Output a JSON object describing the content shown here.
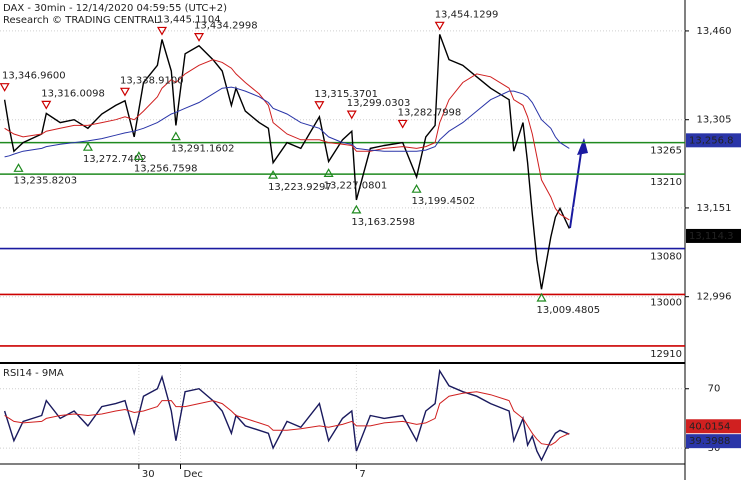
{
  "chart_data": [
    {
      "type": "line",
      "title": "DAX - 30min - 12/14/2020 04:59:55 (UTC+2)",
      "subtitle": "Research © TRADING CENTRAL",
      "x": [
        0,
        1,
        2,
        4,
        8,
        9,
        12,
        15,
        18,
        21,
        24,
        26,
        28,
        30,
        33,
        34,
        36,
        37,
        39,
        42,
        45,
        47,
        49,
        50,
        52,
        55,
        57,
        58,
        61,
        64,
        68,
        70,
        73,
        75,
        76,
        79,
        82,
        86,
        89,
        91,
        93,
        94,
        96,
        99,
        102,
        105,
        109,
        110,
        112,
        113,
        114,
        115,
        116,
        118,
        119,
        120,
        122
      ],
      "xlim": [
        -1,
        147
      ],
      "ylim": [
        12882,
        13514
      ],
      "yticks": [
        {
          "value": 13460,
          "label": "13,460"
        },
        {
          "value": 13305,
          "label": "13,305"
        },
        {
          "value": 13151,
          "label": "13,151"
        },
        {
          "value": 12996,
          "label": "12,996"
        }
      ],
      "grid": true,
      "series": [
        {
          "color": "#000000",
          "values": [
            13340,
            13290,
            13250,
            13265,
            13280,
            13316,
            13300,
            13305,
            13290,
            13315,
            13330,
            13338,
            13275,
            13370,
            13400,
            13445,
            13390,
            13295,
            13420,
            13434,
            13410,
            13390,
            13330,
            13360,
            13320,
            13300,
            13290,
            13230,
            13265,
            13255,
            13310,
            13232,
            13270,
            13285,
            13165,
            13255,
            13260,
            13265,
            13205,
            13275,
            13295,
            13454,
            13410,
            13400,
            13380,
            13360,
            13340,
            13250,
            13300,
            13230,
            13140,
            13060,
            13009,
            13100,
            13135,
            13150,
            13115
          ]
        },
        {
          "color": "#d02020",
          "values": [
            13290,
            13285,
            13280,
            13275,
            13280,
            13285,
            13290,
            13295,
            13295,
            13300,
            13305,
            13310,
            13305,
            13320,
            13345,
            13360,
            13375,
            13370,
            13385,
            13400,
            13410,
            13405,
            13395,
            13385,
            13370,
            13350,
            13330,
            13300,
            13280,
            13270,
            13270,
            13265,
            13262,
            13260,
            13250,
            13250,
            13255,
            13258,
            13255,
            13258,
            13265,
            13300,
            13340,
            13370,
            13385,
            13380,
            13360,
            13340,
            13330,
            13310,
            13280,
            13240,
            13200,
            13170,
            13150,
            13140,
            13130
          ]
        },
        {
          "color": "#2a35a8",
          "values": [
            13240,
            13242,
            13245,
            13250,
            13255,
            13258,
            13262,
            13265,
            13268,
            13272,
            13278,
            13282,
            13285,
            13290,
            13300,
            13305,
            13315,
            13318,
            13325,
            13335,
            13350,
            13360,
            13362,
            13360,
            13355,
            13345,
            13335,
            13325,
            13315,
            13300,
            13290,
            13275,
            13265,
            13262,
            13255,
            13252,
            13250,
            13250,
            13250,
            13252,
            13258,
            13270,
            13285,
            13300,
            13320,
            13340,
            13355,
            13355,
            13350,
            13345,
            13335,
            13320,
            13305,
            13290,
            13275,
            13265,
            13255
          ]
        }
      ],
      "levels": [
        {
          "value": 13265,
          "color": "#1f8a1f"
        },
        {
          "value": 13210,
          "color": "#1f8a1f"
        },
        {
          "value": 13080,
          "color": "#1a1aa0"
        },
        {
          "value": 13000,
          "color": "#cc0000"
        },
        {
          "value": 12910,
          "color": "#cc0000"
        }
      ],
      "annotations": [
        {
          "x": 0,
          "value": 13346.96,
          "label": "13,346.9600",
          "kind": "high"
        },
        {
          "x": 9,
          "value": 13316.0098,
          "label": "13,316.0098",
          "kind": "high"
        },
        {
          "x": 26,
          "value": 13338.91,
          "label": "13,338.9100",
          "kind": "high"
        },
        {
          "x": 34,
          "value": 13445.1104,
          "label": "13,445.1104",
          "kind": "high"
        },
        {
          "x": 42,
          "value": 13434.2998,
          "label": "13,434.2998",
          "kind": "high"
        },
        {
          "x": 94,
          "value": 13454.1299,
          "label": "13,454.1299",
          "kind": "high"
        },
        {
          "x": 68,
          "value": 13315.3701,
          "label": "13,315.3701",
          "kind": "high"
        },
        {
          "x": 75,
          "value": 13299.0303,
          "label": "13,299.0303",
          "kind": "high"
        },
        {
          "x": 86,
          "value": 13282.7998,
          "label": "13,282.7998",
          "kind": "high"
        },
        {
          "x": 18,
          "value": 13272.7402,
          "label": "13,272.7402",
          "kind": "low"
        },
        {
          "x": 37,
          "value": 13291.1602,
          "label": "13,291.1602",
          "kind": "low"
        },
        {
          "x": 29,
          "value": 13256.7598,
          "label": "13,256.7598",
          "kind": "low"
        },
        {
          "x": 3,
          "value": 13235.8203,
          "label": "13,235.8203",
          "kind": "low"
        },
        {
          "x": 58,
          "value": 13223.9297,
          "label": "13,223.9297",
          "kind": "low"
        },
        {
          "x": 70,
          "value": 13227.0801,
          "label": "13,227.0801",
          "kind": "low"
        },
        {
          "x": 76,
          "value": 13163.2598,
          "label": "13,163.2598",
          "kind": "low"
        },
        {
          "x": 89,
          "value": 13199.4502,
          "label": "13,199.4502",
          "kind": "low"
        },
        {
          "x": 116,
          "value": 13009.4805,
          "label": "13,009.4805",
          "kind": "low"
        }
      ],
      "badges": [
        {
          "value": 13256.8,
          "label": "13,256.8",
          "color": "#2a35a8"
        },
        {
          "value": 13114.3,
          "label": "13,114.3",
          "color": "#000000"
        }
      ]
    },
    {
      "type": "line",
      "title": "RSI14 - 9MA",
      "x": [
        0,
        1,
        2,
        4,
        8,
        9,
        12,
        15,
        18,
        21,
        24,
        26,
        28,
        30,
        33,
        34,
        36,
        37,
        39,
        42,
        45,
        47,
        49,
        50,
        52,
        55,
        57,
        58,
        61,
        64,
        68,
        70,
        73,
        75,
        76,
        79,
        82,
        86,
        89,
        91,
        93,
        94,
        96,
        99,
        102,
        105,
        109,
        110,
        112,
        113,
        114,
        115,
        116,
        118,
        119,
        120,
        122
      ],
      "xlim": [
        -1,
        147
      ],
      "xticks": [
        {
          "value": 29,
          "label": "30"
        },
        {
          "value": 38,
          "label": "Dec"
        },
        {
          "value": 76,
          "label": "7"
        }
      ],
      "ylim": [
        19.3,
        86
      ],
      "yticks": [
        70,
        30
      ],
      "grid": true,
      "series": [
        {
          "color": "#1a1a5e",
          "values": [
            55,
            45,
            35,
            48,
            52,
            62,
            50,
            55,
            45,
            58,
            60,
            62,
            40,
            65,
            70,
            78,
            55,
            35,
            68,
            70,
            62,
            55,
            40,
            52,
            45,
            42,
            40,
            30,
            48,
            44,
            60,
            35,
            50,
            55,
            28,
            52,
            50,
            52,
            35,
            55,
            60,
            82,
            72,
            68,
            65,
            60,
            55,
            35,
            50,
            32,
            38,
            28,
            22,
            35,
            40,
            42,
            39.3988
          ]
        },
        {
          "color": "#d02020",
          "values": [
            52,
            50,
            48,
            47,
            48,
            50,
            52,
            53,
            52,
            53,
            55,
            56,
            54,
            55,
            58,
            62,
            62,
            58,
            58,
            60,
            62,
            60,
            55,
            52,
            50,
            47,
            45,
            42,
            42,
            43,
            45,
            44,
            46,
            48,
            45,
            45,
            47,
            48,
            46,
            47,
            50,
            60,
            65,
            67,
            68,
            66,
            62,
            55,
            50,
            45,
            40,
            36,
            33,
            32,
            34,
            37,
            40
          ]
        }
      ],
      "badges": [
        {
          "value": 40.0154,
          "label": "40.0154",
          "color": "#d02020"
        },
        {
          "value": 39.3988,
          "label": "39.3988",
          "color": "#2a35a8"
        }
      ]
    }
  ]
}
